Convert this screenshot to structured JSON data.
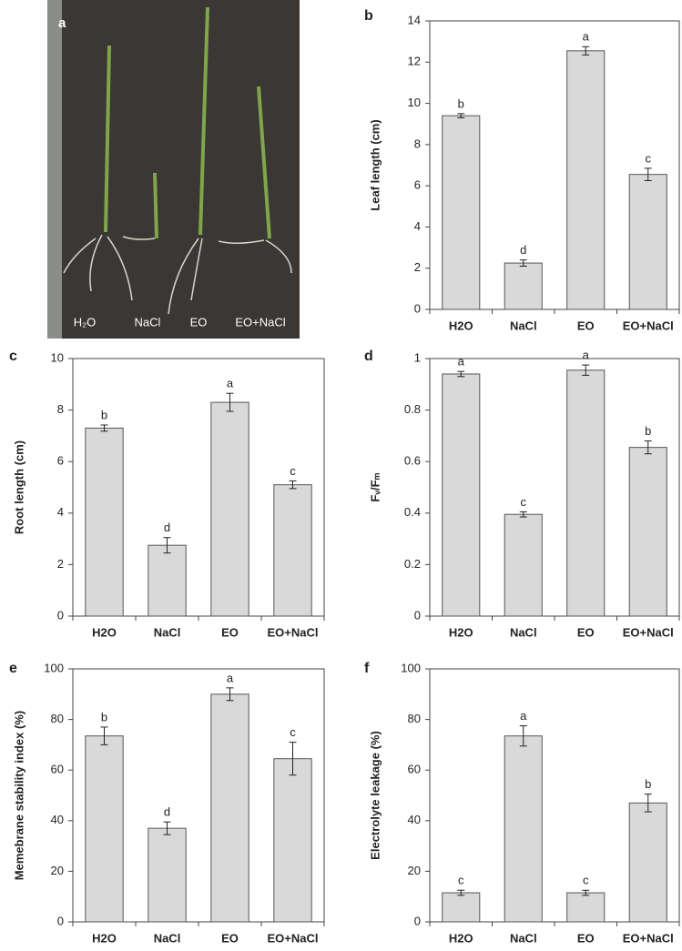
{
  "photo": {
    "panel_label": "a",
    "labels": [
      "H₂O",
      "NaCl",
      "EO",
      "EO+NaCl"
    ]
  },
  "chart_data": [
    {
      "type": "bar",
      "panel_label": "b",
      "y_label": "Leaf length (cm)",
      "categories": [
        "H2O",
        "NaCl",
        "EO",
        "EO+NaCl"
      ],
      "values": [
        9.4,
        2.25,
        12.55,
        6.55
      ],
      "errors": [
        0.1,
        0.15,
        0.2,
        0.3
      ],
      "annotations": [
        "b",
        "d",
        "a",
        "c"
      ],
      "color": "#d9d9d9",
      "ylim": [
        0,
        14
      ],
      "yticks": [
        0,
        2,
        4,
        6,
        8,
        10,
        12,
        14
      ]
    },
    {
      "type": "bar",
      "panel_label": "c",
      "y_label": "Root length (cm)",
      "categories": [
        "H2O",
        "NaCl",
        "EO",
        "EO+NaCl"
      ],
      "values": [
        7.3,
        2.75,
        8.3,
        5.1
      ],
      "errors": [
        0.12,
        0.3,
        0.35,
        0.15
      ],
      "annotations": [
        "b",
        "d",
        "a",
        "c"
      ],
      "color": "#d9d9d9",
      "ylim": [
        0,
        10
      ],
      "yticks": [
        0,
        2,
        4,
        6,
        8,
        10
      ]
    },
    {
      "type": "bar",
      "panel_label": "d",
      "y_label": "Fᵥ/Fₘ",
      "categories": [
        "H2O",
        "NaCl",
        "EO",
        "EO+NaCl"
      ],
      "values": [
        0.94,
        0.395,
        0.955,
        0.655
      ],
      "errors": [
        0.01,
        0.01,
        0.02,
        0.025
      ],
      "annotations": [
        "a",
        "c",
        "a",
        "b"
      ],
      "color": "#d9d9d9",
      "ylim": [
        0,
        1
      ],
      "yticks": [
        0,
        0.2,
        0.4,
        0.6,
        0.8,
        1
      ]
    },
    {
      "type": "bar",
      "panel_label": "e",
      "y_label": "Memebrane stability index (%)",
      "categories": [
        "H2O",
        "NaCl",
        "EO",
        "EO+NaCl"
      ],
      "values": [
        73.5,
        37,
        90,
        64.5
      ],
      "errors": [
        3.5,
        2.5,
        2.5,
        6.5
      ],
      "annotations": [
        "b",
        "d",
        "a",
        "c"
      ],
      "color": "#d9d9d9",
      "ylim": [
        0,
        100
      ],
      "yticks": [
        0,
        20,
        40,
        60,
        80,
        100
      ]
    },
    {
      "type": "bar",
      "panel_label": "f",
      "y_label": "Electrolyte leakage (%)",
      "categories": [
        "H2O",
        "NaCl",
        "EO",
        "EO+NaCl"
      ],
      "values": [
        11.5,
        73.5,
        11.5,
        47
      ],
      "errors": [
        1,
        4,
        1,
        3.5
      ],
      "annotations": [
        "c",
        "a",
        "c",
        "b"
      ],
      "color": "#d9d9d9",
      "ylim": [
        0,
        100
      ],
      "yticks": [
        0,
        20,
        40,
        60,
        80,
        100
      ]
    }
  ]
}
